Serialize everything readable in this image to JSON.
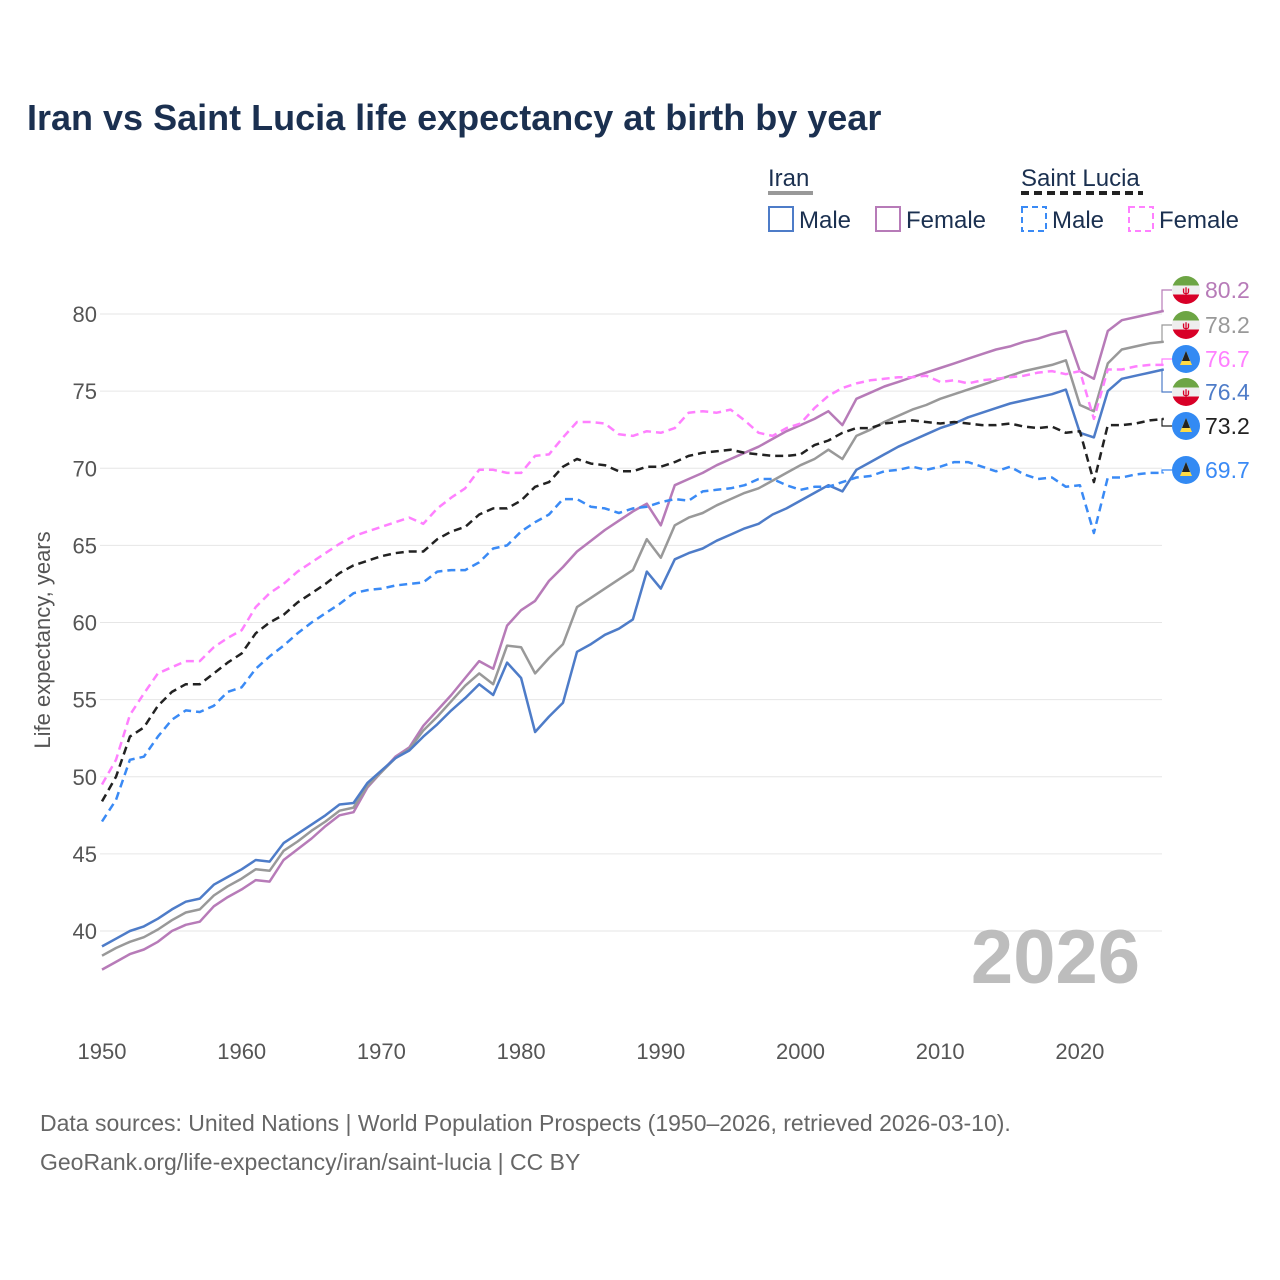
{
  "title": "Iran vs Saint Lucia life expectancy at birth by year",
  "legend": {
    "groups": [
      {
        "label": "Iran",
        "male": "Male",
        "female": "Female"
      },
      {
        "label": "Saint Lucia",
        "male": "Male",
        "female": "Female"
      }
    ]
  },
  "year_label": "2026",
  "footer": {
    "line1": "Data sources: United Nations | World Population Prospects (1950–2026, retrieved 2026-03-10).",
    "line2": "GeoRank.org/life-expectancy/iran/saint-lucia | CC BY"
  },
  "chart_data": {
    "type": "line",
    "title": "Iran vs Saint Lucia life expectancy at birth by year",
    "xlabel": "",
    "ylabel": "Life expectancy, years",
    "xlim": [
      1950,
      2026
    ],
    "ylim": [
      36,
      83
    ],
    "x_ticks": [
      "1950",
      "1960",
      "1970",
      "1980",
      "1990",
      "2000",
      "2010",
      "2020"
    ],
    "y_ticks": [
      "40",
      "45",
      "50",
      "55",
      "60",
      "65",
      "70",
      "75",
      "80"
    ],
    "grid": true,
    "x_start": 1950,
    "series": [
      {
        "name": "Iran Female",
        "country": "Iran",
        "color": "#b77bb8",
        "dashed": false,
        "flag": "iran-flag",
        "end_label": "80.2",
        "values": [
          37.5,
          38.0,
          38.5,
          38.8,
          39.3,
          40.0,
          40.4,
          40.6,
          41.6,
          42.2,
          42.7,
          43.3,
          43.2,
          44.6,
          45.3,
          46.0,
          46.8,
          47.5,
          47.7,
          49.3,
          50.3,
          51.3,
          51.9,
          53.3,
          54.3,
          55.3,
          56.4,
          57.5,
          57.0,
          59.8,
          60.8,
          61.4,
          62.7,
          63.6,
          64.6,
          65.3,
          66.0,
          66.6,
          67.2,
          67.7,
          66.3,
          68.9,
          69.3,
          69.7,
          70.2,
          70.6,
          71.0,
          71.4,
          71.9,
          72.4,
          72.8,
          73.2,
          73.7,
          72.8,
          74.5,
          74.9,
          75.3,
          75.6,
          75.9,
          76.2,
          76.5,
          76.8,
          77.1,
          77.4,
          77.7,
          77.9,
          78.2,
          78.4,
          78.7,
          78.9,
          76.3,
          75.8,
          78.9,
          79.6,
          79.8,
          80.0,
          80.2
        ]
      },
      {
        "name": "Iran",
        "country": "Iran",
        "color": "#999999",
        "dashed": false,
        "flag": "iran-flag",
        "end_label": "78.2",
        "values": [
          38.4,
          38.9,
          39.3,
          39.6,
          40.1,
          40.7,
          41.2,
          41.4,
          42.3,
          42.9,
          43.4,
          44.0,
          43.9,
          45.2,
          45.8,
          46.5,
          47.1,
          47.8,
          48.0,
          49.4,
          50.3,
          51.2,
          51.8,
          53.0,
          53.9,
          54.9,
          55.9,
          56.7,
          56.0,
          58.5,
          58.4,
          56.7,
          57.7,
          58.6,
          61.0,
          61.6,
          62.2,
          62.8,
          63.4,
          65.4,
          64.2,
          66.3,
          66.8,
          67.1,
          67.6,
          68.0,
          68.4,
          68.7,
          69.2,
          69.7,
          70.2,
          70.6,
          71.2,
          70.6,
          72.1,
          72.5,
          73.0,
          73.4,
          73.8,
          74.1,
          74.5,
          74.8,
          75.1,
          75.4,
          75.7,
          76.0,
          76.3,
          76.5,
          76.7,
          77.0,
          74.1,
          73.7,
          76.8,
          77.7,
          77.9,
          78.1,
          78.2
        ]
      },
      {
        "name": "Saint Lucia Female",
        "country": "Saint Lucia",
        "color": "#ff80ff",
        "dashed": true,
        "flag": "saint-lucia-flag",
        "end_label": "76.7",
        "values": [
          49.5,
          51.1,
          54.0,
          55.4,
          56.7,
          57.1,
          57.5,
          57.5,
          58.4,
          59.0,
          59.5,
          61.0,
          61.9,
          62.5,
          63.3,
          63.9,
          64.5,
          65.1,
          65.6,
          65.9,
          66.2,
          66.5,
          66.8,
          66.4,
          67.4,
          68.1,
          68.7,
          69.9,
          69.9,
          69.7,
          69.7,
          70.8,
          70.9,
          72.0,
          73.0,
          73.0,
          72.9,
          72.2,
          72.1,
          72.4,
          72.3,
          72.6,
          73.6,
          73.7,
          73.6,
          73.8,
          73.1,
          72.3,
          72.1,
          72.6,
          72.9,
          73.9,
          74.7,
          75.2,
          75.5,
          75.7,
          75.8,
          75.9,
          75.9,
          76.0,
          75.6,
          75.7,
          75.5,
          75.7,
          75.8,
          75.9,
          76.0,
          76.2,
          76.3,
          76.1,
          76.3,
          73.2,
          76.4,
          76.4,
          76.6,
          76.7,
          76.7
        ]
      },
      {
        "name": "Iran Male",
        "country": "Iran",
        "color": "#4e7cc8",
        "dashed": false,
        "flag": "iran-flag",
        "end_label": "76.4",
        "values": [
          39.0,
          39.5,
          40.0,
          40.3,
          40.8,
          41.4,
          41.9,
          42.1,
          43.0,
          43.5,
          44.0,
          44.6,
          44.5,
          45.7,
          46.3,
          46.9,
          47.5,
          48.2,
          48.3,
          49.6,
          50.4,
          51.2,
          51.7,
          52.6,
          53.4,
          54.3,
          55.1,
          56.0,
          55.3,
          57.4,
          56.4,
          52.9,
          53.9,
          54.8,
          58.1,
          58.6,
          59.2,
          59.6,
          60.2,
          63.3,
          62.2,
          64.1,
          64.5,
          64.8,
          65.3,
          65.7,
          66.1,
          66.4,
          67.0,
          67.4,
          67.9,
          68.4,
          68.9,
          68.5,
          69.9,
          70.4,
          70.9,
          71.4,
          71.8,
          72.2,
          72.6,
          72.9,
          73.3,
          73.6,
          73.9,
          74.2,
          74.4,
          74.6,
          74.8,
          75.1,
          72.3,
          72.0,
          75.0,
          75.8,
          76.0,
          76.2,
          76.4
        ]
      },
      {
        "name": "Saint Lucia",
        "country": "Saint Lucia",
        "color": "#222222",
        "dashed": true,
        "flag": "saint-lucia-flag",
        "end_label": "73.2",
        "values": [
          48.4,
          50.0,
          52.6,
          53.2,
          54.6,
          55.5,
          56.0,
          56.0,
          56.7,
          57.4,
          58.0,
          59.3,
          60.0,
          60.5,
          61.3,
          61.9,
          62.5,
          63.2,
          63.7,
          64.0,
          64.3,
          64.5,
          64.6,
          64.6,
          65.4,
          65.9,
          66.2,
          67.0,
          67.4,
          67.4,
          67.9,
          68.8,
          69.1,
          70.1,
          70.6,
          70.3,
          70.2,
          69.8,
          69.8,
          70.1,
          70.1,
          70.4,
          70.8,
          71.0,
          71.1,
          71.2,
          71.0,
          70.9,
          70.8,
          70.8,
          70.9,
          71.5,
          71.8,
          72.3,
          72.6,
          72.6,
          72.9,
          73.0,
          73.1,
          73.0,
          72.9,
          73.0,
          72.9,
          72.8,
          72.8,
          72.9,
          72.7,
          72.6,
          72.7,
          72.3,
          72.4,
          69.1,
          72.8,
          72.8,
          72.9,
          73.1,
          73.2
        ]
      },
      {
        "name": "Saint Lucia Male",
        "country": "Saint Lucia",
        "color": "#3a8af5",
        "dashed": true,
        "flag": "saint-lucia-flag",
        "end_label": "69.7",
        "values": [
          47.1,
          48.5,
          51.1,
          51.3,
          52.6,
          53.7,
          54.3,
          54.2,
          54.6,
          55.5,
          55.8,
          57.0,
          57.8,
          58.5,
          59.3,
          60.0,
          60.6,
          61.2,
          61.9,
          62.1,
          62.2,
          62.4,
          62.5,
          62.6,
          63.3,
          63.4,
          63.4,
          63.9,
          64.8,
          65.0,
          65.9,
          66.5,
          67.0,
          68.0,
          68.0,
          67.5,
          67.4,
          67.1,
          67.4,
          67.5,
          67.8,
          68.0,
          67.9,
          68.5,
          68.6,
          68.7,
          68.9,
          69.3,
          69.3,
          68.9,
          68.6,
          68.8,
          68.8,
          69.1,
          69.4,
          69.5,
          69.8,
          69.9,
          70.1,
          69.9,
          70.1,
          70.4,
          70.4,
          70.1,
          69.8,
          70.1,
          69.6,
          69.3,
          69.4,
          68.8,
          68.9,
          65.8,
          69.4,
          69.4,
          69.6,
          69.7,
          69.7
        ]
      }
    ]
  }
}
